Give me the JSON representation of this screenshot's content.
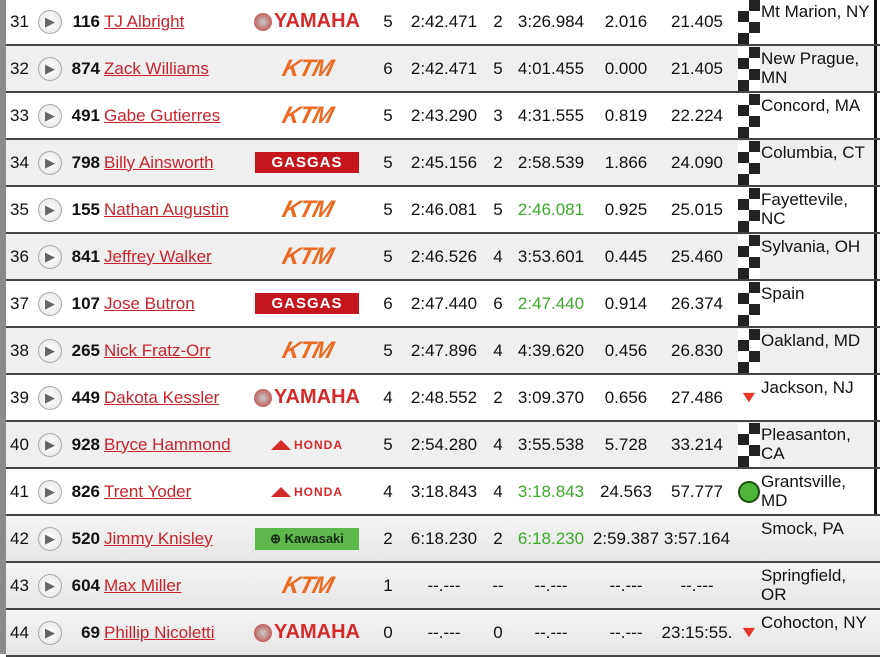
{
  "colors": {
    "link": "#c8242b",
    "best_lap_green": "#3daa2a",
    "ktm": "#ea6b24",
    "yamaha": "#d42a2a",
    "gasgas": "#c4161c",
    "kawasaki": "#5cb84a"
  },
  "rows": [
    {
      "pos": "31",
      "num": "116",
      "name": "TJ Albright",
      "brand": "YAMAHA",
      "brand_type": "yamaha",
      "laps": "5",
      "best": "2:42.471",
      "lapn": "2",
      "last": "3:26.984",
      "last_green": false,
      "gap": "2.016",
      "diff": "21.405",
      "icon": "checkered-flag",
      "home": "Mt Marion, NY",
      "border": true
    },
    {
      "pos": "32",
      "num": "874",
      "name": "Zack Williams",
      "brand": "KTM",
      "brand_type": "ktm",
      "laps": "6",
      "best": "2:42.471",
      "lapn": "5",
      "last": "4:01.455",
      "last_green": false,
      "gap": "0.000",
      "diff": "21.405",
      "icon": "checkered-flag",
      "home": "New Prague, MN",
      "border": true
    },
    {
      "pos": "33",
      "num": "491",
      "name": "Gabe Gutierres",
      "brand": "KTM",
      "brand_type": "ktm",
      "laps": "5",
      "best": "2:43.290",
      "lapn": "3",
      "last": "4:31.555",
      "last_green": false,
      "gap": "0.819",
      "diff": "22.224",
      "icon": "checkered-flag",
      "home": "Concord, MA",
      "border": true
    },
    {
      "pos": "34",
      "num": "798",
      "name": "Billy Ainsworth",
      "brand": "GASGAS",
      "brand_type": "gasgas",
      "laps": "5",
      "best": "2:45.156",
      "lapn": "2",
      "last": "2:58.539",
      "last_green": false,
      "gap": "1.866",
      "diff": "24.090",
      "icon": "checkered-flag",
      "home": "Columbia, CT",
      "border": true
    },
    {
      "pos": "35",
      "num": "155",
      "name": "Nathan Augustin",
      "brand": "KTM",
      "brand_type": "ktm",
      "laps": "5",
      "best": "2:46.081",
      "lapn": "5",
      "last": "2:46.081",
      "last_green": true,
      "gap": "0.925",
      "diff": "25.015",
      "icon": "checkered-flag",
      "home": "Fayettevile, NC",
      "border": true
    },
    {
      "pos": "36",
      "num": "841",
      "name": "Jeffrey Walker",
      "brand": "KTM",
      "brand_type": "ktm",
      "laps": "5",
      "best": "2:46.526",
      "lapn": "4",
      "last": "3:53.601",
      "last_green": false,
      "gap": "0.445",
      "diff": "25.460",
      "icon": "checkered-flag",
      "home": "Sylvania, OH",
      "border": true
    },
    {
      "pos": "37",
      "num": "107",
      "name": "Jose Butron",
      "brand": "GASGAS",
      "brand_type": "gasgas",
      "laps": "6",
      "best": "2:47.440",
      "lapn": "6",
      "last": "2:47.440",
      "last_green": true,
      "gap": "0.914",
      "diff": "26.374",
      "icon": "checkered-flag",
      "home": "Spain",
      "border": true
    },
    {
      "pos": "38",
      "num": "265",
      "name": "Nick Fratz-Orr",
      "brand": "KTM",
      "brand_type": "ktm",
      "laps": "5",
      "best": "2:47.896",
      "lapn": "4",
      "last": "4:39.620",
      "last_green": false,
      "gap": "0.456",
      "diff": "26.830",
      "icon": "checkered-flag",
      "home": "Oakland, MD",
      "border": true
    },
    {
      "pos": "39",
      "num": "449",
      "name": "Dakota Kessler",
      "brand": "YAMAHA",
      "brand_type": "yamaha",
      "laps": "4",
      "best": "2:48.552",
      "lapn": "2",
      "last": "3:09.370",
      "last_green": false,
      "gap": "0.656",
      "diff": "27.486",
      "icon": "down-arrow",
      "home": "Jackson, NJ",
      "border": true
    },
    {
      "pos": "40",
      "num": "928",
      "name": "Bryce Hammond",
      "brand": "HONDA",
      "brand_type": "honda",
      "laps": "5",
      "best": "2:54.280",
      "lapn": "4",
      "last": "3:55.538",
      "last_green": false,
      "gap": "5.728",
      "diff": "33.214",
      "icon": "checkered-flag",
      "home": "Pleasanton, CA",
      "border": true
    },
    {
      "pos": "41",
      "num": "826",
      "name": "Trent Yoder",
      "brand": "HONDA",
      "brand_type": "honda",
      "laps": "4",
      "best": "3:18.843",
      "lapn": "4",
      "last": "3:18.843",
      "last_green": true,
      "gap": "24.563",
      "diff": "57.777",
      "icon": "green-dot",
      "home": "Grantsville, MD",
      "border": true
    },
    {
      "pos": "42",
      "num": "520",
      "name": "Jimmy Knisley",
      "brand": "Kawasaki",
      "brand_type": "kawasaki",
      "laps": "2",
      "best": "6:18.230",
      "lapn": "2",
      "last": "6:18.230",
      "last_green": true,
      "gap": "2:59.387",
      "diff": "3:57.164",
      "icon": "",
      "home": "Smock, PA",
      "border": false
    },
    {
      "pos": "43",
      "num": "604",
      "name": "Max Miller",
      "brand": "KTM",
      "brand_type": "ktm",
      "laps": "1",
      "best": "--.---",
      "lapn": "--",
      "last": "--.---",
      "last_green": false,
      "gap": "--.---",
      "diff": "--.---",
      "icon": "",
      "home": "Springfield, OR",
      "border": false
    },
    {
      "pos": "44",
      "num": "69",
      "name": "Phillip Nicoletti",
      "brand": "YAMAHA",
      "brand_type": "yamaha",
      "laps": "0",
      "best": "--.---",
      "lapn": "0",
      "last": "--.---",
      "last_green": false,
      "gap": "--.---",
      "diff": "23:15:55.",
      "icon": "down-arrow",
      "home": "Cohocton, NY",
      "border": false
    }
  ]
}
